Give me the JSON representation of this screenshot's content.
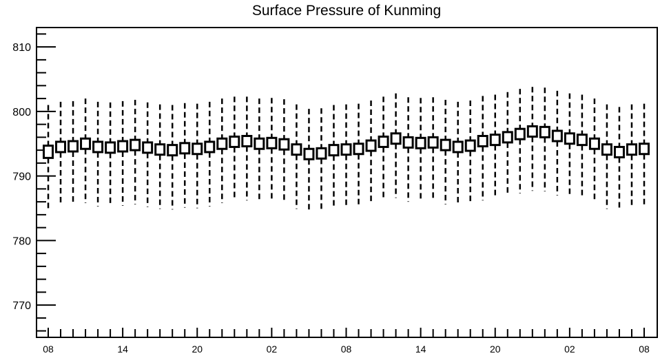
{
  "chart_data": {
    "type": "boxplot",
    "title": "Surface Pressure of Kunming",
    "xlabel": "",
    "ylabel": "",
    "ylim": [
      765,
      813
    ],
    "y_ticks": [
      770,
      780,
      790,
      800,
      810
    ],
    "x_tick_labels": [
      "08",
      "14",
      "20",
      "02",
      "08",
      "14",
      "20",
      "02",
      "08"
    ],
    "grid": false,
    "series": [
      {
        "center": [
          793.9,
          794.5,
          794.6,
          795.0,
          794.5,
          794.4,
          794.6,
          794.8,
          794.4,
          794.1,
          794.0,
          794.3,
          794.2,
          794.5,
          795.0,
          795.3,
          795.4,
          795.0,
          795.1,
          794.9,
          794.1,
          793.4,
          793.5,
          794.0,
          794.1,
          794.2,
          794.7,
          795.3,
          795.8,
          795.2,
          795.1,
          795.2,
          794.8,
          794.5,
          794.7,
          795.4,
          795.6,
          796.0,
          796.5,
          796.9,
          796.8,
          796.2,
          795.8,
          795.6,
          795.0,
          794.1,
          793.7,
          794.1,
          794.2
        ],
        "box_top": [
          794.7,
          795.3,
          795.4,
          795.8,
          795.3,
          795.2,
          795.4,
          795.6,
          795.2,
          794.9,
          794.8,
          795.1,
          795.0,
          795.3,
          795.8,
          796.1,
          796.2,
          795.8,
          795.9,
          795.7,
          794.9,
          794.2,
          794.3,
          794.8,
          794.9,
          795.0,
          795.5,
          796.1,
          796.6,
          796.0,
          795.9,
          796.0,
          795.6,
          795.3,
          795.5,
          796.2,
          796.4,
          796.8,
          797.3,
          797.7,
          797.6,
          797.0,
          796.6,
          796.4,
          795.8,
          794.9,
          794.5,
          794.9,
          795.0
        ],
        "box_bottom": [
          792.8,
          793.7,
          793.8,
          794.2,
          793.7,
          793.6,
          793.8,
          794.0,
          793.6,
          793.3,
          793.2,
          793.5,
          793.4,
          793.7,
          794.2,
          794.5,
          794.6,
          794.2,
          794.3,
          794.1,
          793.3,
          792.6,
          792.7,
          793.2,
          793.3,
          793.4,
          793.9,
          794.5,
          795.0,
          794.4,
          794.3,
          794.4,
          794.0,
          793.7,
          793.9,
          794.6,
          794.8,
          795.2,
          795.7,
          796.1,
          796.0,
          795.4,
          795.0,
          794.8,
          794.2,
          793.3,
          792.9,
          793.3,
          793.4
        ],
        "whisker_high": [
          801.0,
          801.5,
          801.6,
          802.0,
          801.5,
          801.4,
          801.6,
          801.8,
          801.4,
          801.1,
          801.0,
          801.3,
          801.2,
          801.5,
          802.0,
          802.3,
          802.3,
          802.0,
          802.1,
          801.9,
          801.1,
          800.4,
          800.5,
          801.0,
          801.1,
          801.2,
          801.7,
          802.3,
          802.8,
          802.2,
          802.1,
          802.2,
          801.8,
          801.5,
          801.7,
          802.4,
          802.6,
          803.0,
          803.5,
          803.8,
          803.7,
          803.2,
          802.8,
          802.6,
          802.0,
          801.1,
          800.7,
          801.1,
          801.2
        ],
        "whisker_low": [
          784.5,
          785.5,
          785.6,
          785.8,
          785.3,
          785.3,
          785.4,
          785.6,
          785.2,
          784.9,
          784.8,
          785.1,
          785.0,
          785.3,
          785.8,
          786.2,
          786.2,
          785.9,
          786.0,
          785.8,
          784.9,
          784.3,
          784.4,
          784.9,
          785.0,
          785.1,
          785.6,
          786.2,
          786.6,
          786.0,
          786.0,
          786.1,
          785.6,
          785.4,
          785.6,
          786.2,
          786.5,
          786.9,
          787.3,
          787.7,
          787.6,
          787.0,
          786.7,
          786.5,
          785.9,
          784.9,
          784.6,
          785.0,
          785.1
        ]
      }
    ]
  }
}
